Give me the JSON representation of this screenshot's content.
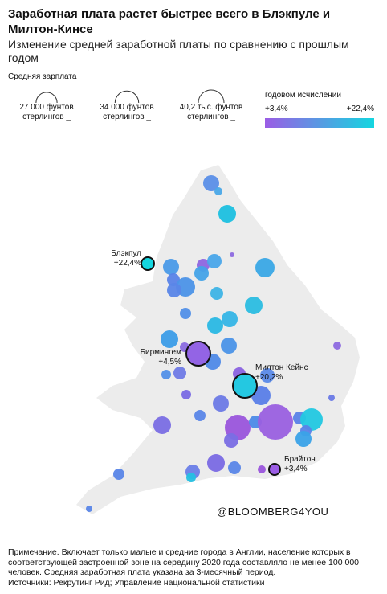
{
  "header": {
    "title": "Заработная плата растет быстрее всего в Блэкпуле и Милтон-Кинсе",
    "subtitle": "Изменение средней заработной платы по сравнению с прошлым годом"
  },
  "size_legend": {
    "title": "Средняя зарплата",
    "items": [
      {
        "value": 27000,
        "label": "27 000 фунтов стерлингов"
      },
      {
        "value": 34000,
        "label": "34 000 фунтов стерлингов"
      },
      {
        "value": 40200,
        "label": "40,2 тыс. фунтов стерлингов"
      }
    ]
  },
  "color_legend": {
    "title": "годовом исчислении",
    "low_color": "#9b5de5",
    "high_color": "#14d6e0",
    "ticks": [
      {
        "value": 3.4,
        "label": "+3,4%"
      },
      {
        "value": 22.4,
        "label": "+22,4%"
      }
    ]
  },
  "cities": [
    {
      "name": "Блэкпул",
      "growth": 22.4,
      "growth_label": "+22,4%"
    },
    {
      "name": "Бирмингем",
      "growth": 4.5,
      "growth_label": "+4,5%"
    },
    {
      "name": "Милтон Кейнс",
      "growth": 20.2,
      "growth_label": "+20,2%"
    },
    {
      "name": "Брайтон",
      "growth": 3.4,
      "growth_label": "+3,4%"
    }
  ],
  "watermark": "@BLOOMBERG4YOU",
  "note": "Примечание. Включает только малые и средние города в Англии, население которых в соответствующей застроенной зоне на середину 2020 года составляло не менее 100 000 человек. Средняя заработная плата указана за 3-месячный период.",
  "sources": "Источники: Рекрутинг Рид; Управление национальной статистики"
}
